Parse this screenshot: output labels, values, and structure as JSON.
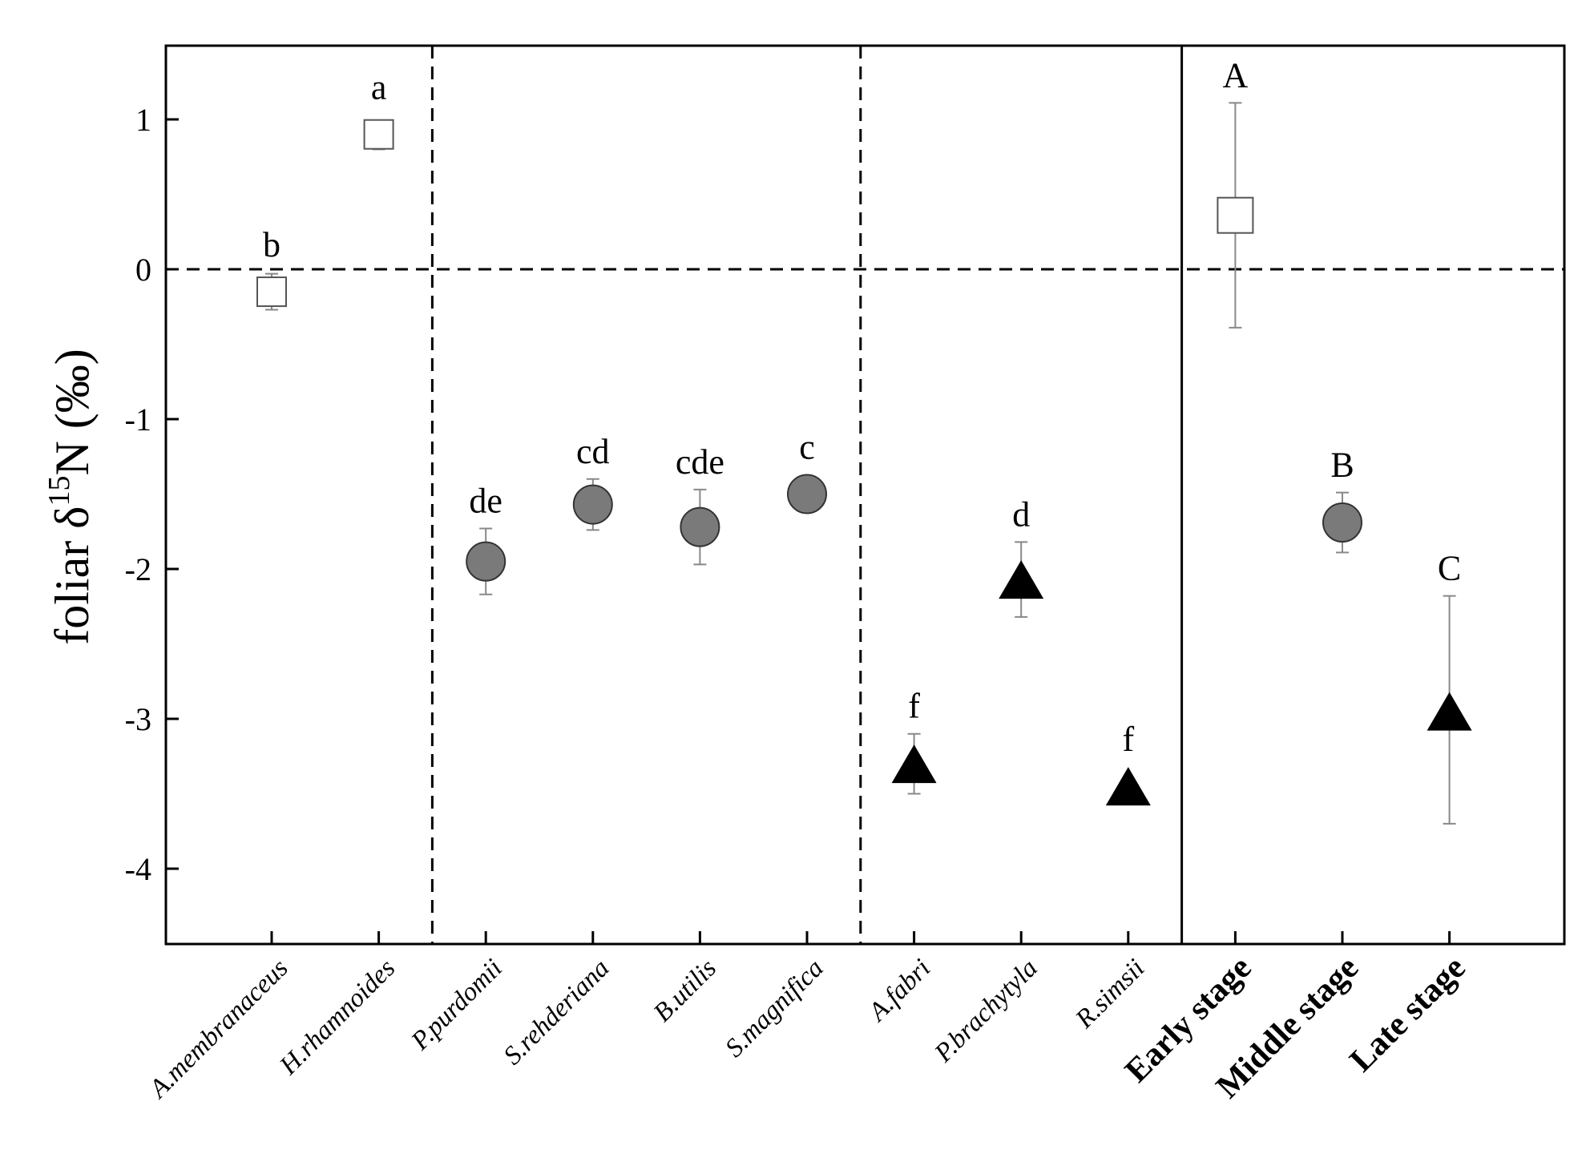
{
  "chart_data": {
    "type": "scatter",
    "ylabel": {
      "prefix": "foliar δ",
      "sup": "15",
      "suffix": "N (‰)"
    },
    "ylim": [
      -4.5,
      1.5
    ],
    "yticks": [
      1,
      0,
      -1,
      -2,
      -3,
      -4
    ],
    "yticklabels": [
      "1",
      "0",
      "-1",
      "-2",
      "-3",
      "-4"
    ],
    "grid": false,
    "reference_line_y": 0,
    "group_dividers_after": [
      {
        "after_index": 1,
        "style": "dashed"
      },
      {
        "after_index": 5,
        "style": "dashed"
      },
      {
        "after_index": 8,
        "style": "solid"
      }
    ],
    "colors": {
      "circle_fill": "#7a7a7a",
      "triangle_fill": "#000000",
      "square_fill": "#ffffff",
      "errorbar": "#888888"
    },
    "points": [
      {
        "category": "A.membranaceus",
        "italic": true,
        "bold": false,
        "value": -0.15,
        "err_low": 0.12,
        "err_high": 0.12,
        "marker": "square",
        "size": "small",
        "letter": "b"
      },
      {
        "category": "H.rhamnoides",
        "italic": true,
        "bold": false,
        "value": 0.9,
        "err_low": 0.1,
        "err_high": 0.08,
        "marker": "square",
        "size": "small",
        "letter": "a"
      },
      {
        "category": "P.purdomii",
        "italic": true,
        "bold": false,
        "value": -1.95,
        "err_low": 0.22,
        "err_high": 0.22,
        "marker": "circle",
        "size": "normal",
        "letter": "de"
      },
      {
        "category": "S.rehderiana",
        "italic": true,
        "bold": false,
        "value": -1.57,
        "err_low": 0.17,
        "err_high": 0.17,
        "marker": "circle",
        "size": "normal",
        "letter": "cd"
      },
      {
        "category": "B.utilis",
        "italic": true,
        "bold": false,
        "value": -1.72,
        "err_low": 0.25,
        "err_high": 0.25,
        "marker": "circle",
        "size": "normal",
        "letter": "cde"
      },
      {
        "category": "S.magnifica",
        "italic": true,
        "bold": false,
        "value": -1.5,
        "err_low": 0.12,
        "err_high": 0.12,
        "marker": "circle",
        "size": "normal",
        "letter": "c"
      },
      {
        "category": "A.fabri",
        "italic": true,
        "bold": false,
        "value": -3.3,
        "err_low": 0.2,
        "err_high": 0.2,
        "marker": "triangle",
        "size": "normal",
        "letter": "f"
      },
      {
        "category": "P.brachytyla",
        "italic": true,
        "bold": false,
        "value": -2.07,
        "err_low": 0.25,
        "err_high": 0.25,
        "marker": "triangle",
        "size": "normal",
        "letter": "d"
      },
      {
        "category": "R.simsii",
        "italic": true,
        "bold": false,
        "value": -3.45,
        "err_low": 0.04,
        "err_high": 0.04,
        "marker": "triangle",
        "size": "normal",
        "letter": "f"
      },
      {
        "category": "Early stage",
        "italic": false,
        "bold": true,
        "value": 0.36,
        "err_low": 0.75,
        "err_high": 0.75,
        "marker": "square",
        "size": "large",
        "letter": "A"
      },
      {
        "category": "Middle stage",
        "italic": false,
        "bold": true,
        "value": -1.69,
        "err_low": 0.2,
        "err_high": 0.2,
        "marker": "circle",
        "size": "normal",
        "letter": "B"
      },
      {
        "category": "Late stage",
        "italic": false,
        "bold": true,
        "value": -2.95,
        "err_low": 0.75,
        "err_high": 0.77,
        "marker": "triangle",
        "size": "normal",
        "letter": "C"
      }
    ]
  }
}
